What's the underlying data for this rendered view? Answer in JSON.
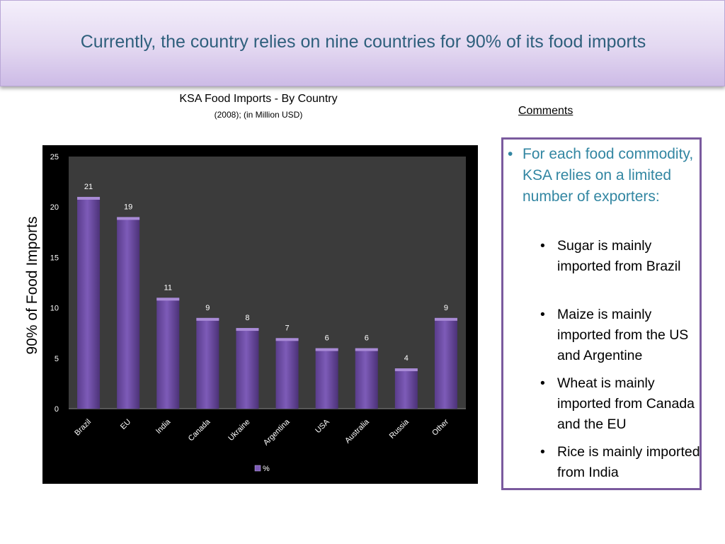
{
  "header": {
    "title": "Currently, the country relies on nine countries for 90% of its food imports"
  },
  "chart_data": {
    "type": "bar",
    "title": "KSA Food Imports - By Country",
    "subtitle": "(2008); (in Million USD)",
    "ylabel": "90% of Food Imports",
    "xlabel": "",
    "categories": [
      "Brazil",
      "EU",
      "India",
      "Canada",
      "Ukraine",
      "Argentina",
      "USA",
      "Australia",
      "Russia",
      "Other"
    ],
    "series": [
      {
        "name": "%",
        "values": [
          21,
          19,
          11,
          9,
          8,
          7,
          6,
          6,
          4,
          9
        ]
      }
    ],
    "ylim": [
      0,
      25
    ],
    "yticks": [
      0,
      5,
      10,
      15,
      20,
      25
    ],
    "grid": false,
    "legend": "bottom",
    "bar_color": "#7d5bb8",
    "background": "#000000",
    "plot_area_color": "#3b3b3b"
  },
  "comments": {
    "title": "Comments",
    "main": "For each food commodity, KSA relies on a limited number of exporters:",
    "items": [
      "Sugar is mainly imported from Brazil",
      "Maize is mainly imported from the US and Argentine",
      "Wheat is mainly imported from Canada and the EU",
      "Rice is mainly imported from India"
    ]
  },
  "bullet_char": "•"
}
